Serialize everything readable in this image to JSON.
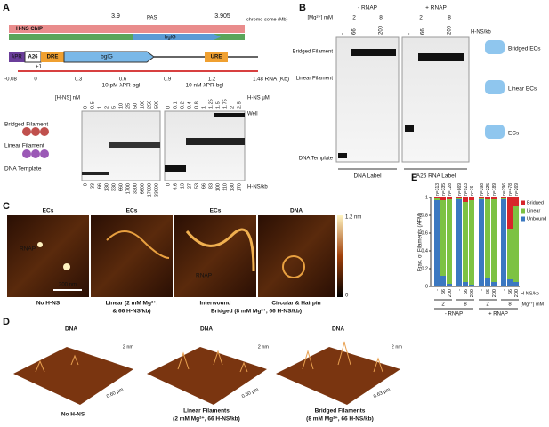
{
  "panels": {
    "A": {
      "label": "A",
      "map_ticks": [
        "3.9",
        "3.905"
      ],
      "chromosome_label": "chromo-some (Mb)",
      "hns_chip": "H-NS ChIP",
      "pas": "PAS",
      "gene": "bglG",
      "lambda": "λPR",
      "a26": "A26",
      "dre": "DRE",
      "gene2": "bglG",
      "ure": "URE",
      "tss": "+1",
      "rna_ticks": [
        "-0.08",
        "0",
        "0.3",
        "0.6",
        "0.9",
        "1.2",
        "1.48"
      ],
      "rna_label": "RNA (Kb)",
      "gel1_title": "10 pM λPR-bgl",
      "gel2_title": "10 nM λPR-bgl",
      "hns_nm": "[H-NS] nM",
      "hns_um": "H-NS μM",
      "gel1_lanes": [
        "0",
        "0.5",
        "1",
        "2",
        "5",
        "10",
        "25",
        "50",
        "100",
        "250",
        "500"
      ],
      "gel2_lanes": [
        "0",
        "0.1",
        "0.2",
        "0.4",
        "0.8",
        "1",
        "1.25",
        "1.5",
        "1.75",
        "2",
        "2.5"
      ],
      "gel1_ratios": [
        "0",
        "33",
        "66",
        "130",
        "330",
        "660",
        "1700",
        "3300",
        "6600",
        "17000",
        "33000"
      ],
      "gel2_ratios": [
        "0",
        "6.6",
        "13",
        "27",
        "53",
        "66",
        "83",
        "100",
        "110",
        "130",
        "170"
      ],
      "well": "Well",
      "ratio_label": "H-NS/kb",
      "bridged": "Bridged Filament",
      "linear": "Linear Filament",
      "template": "DNA Template"
    },
    "B": {
      "label": "B",
      "mg_label": "[Mg²⁺] mM",
      "conditions": [
        "- RNAP",
        "+ RNAP"
      ],
      "mg": [
        "2",
        "8",
        "2",
        "8"
      ],
      "lanes": [
        "-",
        "66",
        "200",
        "-",
        "66",
        "200"
      ],
      "ratio_label": "H-NS/kb",
      "left": [
        "Bridged Filament",
        "Linear Filament",
        "DNA Template"
      ],
      "bottom": [
        "DNA Label",
        "A26 RNA Label"
      ],
      "right": [
        "Bridged ECs",
        "Linear ECs",
        "ECs"
      ]
    },
    "C": {
      "label": "C",
      "titles": [
        "ECs",
        "ECs",
        "ECs",
        "DNA"
      ],
      "captions": [
        "No H-NS",
        "Linear (2 mM Mg²⁺,",
        "& 66 H-NS/kb)",
        "Interwound",
        "Circular & Hairpin"
      ],
      "bridged_caption": "Bridged (8 mM Mg²⁺, 66 H-NS/kb)",
      "rnap": "RNAP",
      "rnap2": "RNAP",
      "scale": "200 nm",
      "colorbar": [
        "1.2 nm",
        "0"
      ]
    },
    "D": {
      "label": "D",
      "titles": [
        "DNA",
        "DNA",
        "DNA"
      ],
      "captions": [
        "No H-NS",
        "Linear Filaments",
        "(2 mM Mg²⁺, 66 H-NS/kb)",
        "Bridged Filaments",
        "(8 mM Mg²⁺, 66 H-NS/kb)"
      ],
      "height": [
        "2 nm",
        "2 nm",
        "2 nm"
      ],
      "scales": [
        "0.60 µm",
        "0.50 µm",
        "0.63 µm"
      ]
    },
    "E": {
      "label": "E",
      "type": "bar",
      "stacked": true,
      "ylabel": "Frac. of Filaments (AFM)",
      "ylim": [
        0,
        1
      ],
      "yticks": [
        0,
        0.2,
        0.4,
        0.6,
        0.8,
        1
      ],
      "categories": [
        "-",
        "66",
        "200",
        "-",
        "66",
        "200",
        "-",
        "66",
        "200",
        "-",
        "66",
        "200"
      ],
      "n_labels": [
        "n=313",
        "n=335",
        "n=128",
        "n=869",
        "n=923",
        "n=76",
        "n=398",
        "n=225",
        "n=189",
        "n=296",
        "n=478",
        "n=269"
      ],
      "groups": [
        "2",
        "8",
        "2",
        "8"
      ],
      "cat_axis_label": "H-NS/kb",
      "group_axis_label": "[Mg²⁺] mM",
      "conditions": [
        "- RNAP",
        "+ RNAP"
      ],
      "series": [
        {
          "name": "Bridged",
          "color": "#d7262b",
          "values": [
            0.01,
            0.03,
            0.02,
            0.01,
            0.05,
            0.03,
            0.01,
            0.02,
            0.02,
            0.01,
            0.35,
            0.1
          ]
        },
        {
          "name": "Linear",
          "color": "#7dc243",
          "values": [
            0.02,
            0.85,
            0.95,
            0.01,
            0.9,
            0.95,
            0.01,
            0.88,
            0.93,
            0.01,
            0.57,
            0.85
          ]
        },
        {
          "name": "Unbound",
          "color": "#3b78c1",
          "values": [
            0.97,
            0.12,
            0.03,
            0.98,
            0.05,
            0.02,
            0.98,
            0.1,
            0.05,
            0.98,
            0.08,
            0.05
          ]
        }
      ]
    }
  }
}
